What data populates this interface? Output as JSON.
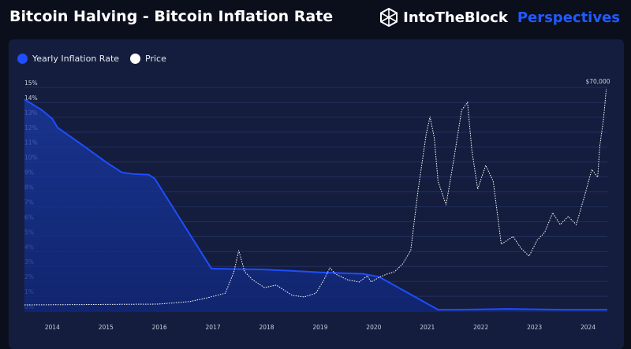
{
  "title": "Bitcoin Halving - Bitcoin Inflation Rate",
  "brand": {
    "name": "IntoTheBlock",
    "suffix": "Perspectives",
    "logo_icon": "hexagon-cube-icon"
  },
  "colors": {
    "inflation": "#1f4dff",
    "price": "#ffffff",
    "background": "#0b0f1c",
    "card": "#141d3d",
    "accent": "#1f5bff"
  },
  "chart_data": {
    "type": "line",
    "title": "",
    "legend": {
      "placement": "top-left",
      "entries": [
        "Yearly Inflation Rate",
        "Price"
      ]
    },
    "grid": true,
    "x_ticks": [
      "2014",
      "2015",
      "2016",
      "2017",
      "2018",
      "2019",
      "2020",
      "2021",
      "2022",
      "2023",
      "2024"
    ],
    "xlim": [
      2013.48,
      2024.36
    ],
    "y_ticks": [
      "0%",
      "1%",
      "2%",
      "3%",
      "4%",
      "5%",
      "6%",
      "7%",
      "8%",
      "9%",
      "10%",
      "11%",
      "12%",
      "13%",
      "14%",
      "15%"
    ],
    "ylim": [
      0,
      15
    ],
    "price_axis_label": "$70,000",
    "price_lim": [
      0,
      70000
    ],
    "series": [
      {
        "name": "Yearly Inflation Rate",
        "style": "area-line",
        "x": [
          2013.48,
          2013.8,
          2014.0,
          2014.1,
          2014.5,
          2015.0,
          2015.3,
          2015.5,
          2015.8,
          2015.91,
          2016.97,
          2017.9,
          2018.5,
          2019.0,
          2019.8,
          2020.1,
          2021.2,
          2021.6,
          2022.5,
          2023.5,
          2024.36
        ],
        "y": [
          14.2,
          13.5,
          12.9,
          12.3,
          11.3,
          10.0,
          9.3,
          9.2,
          9.15,
          8.9,
          2.85,
          2.8,
          2.7,
          2.6,
          2.5,
          2.3,
          0.1,
          0.1,
          0.15,
          0.1,
          0.1
        ]
      },
      {
        "name": "Price",
        "style": "dotted-line",
        "x": [
          2013.48,
          2015.97,
          2016.56,
          2016.89,
          2017.23,
          2017.39,
          2017.48,
          2017.59,
          2017.74,
          2017.96,
          2018.18,
          2018.48,
          2018.7,
          2018.92,
          2019.07,
          2019.18,
          2019.29,
          2019.51,
          2019.73,
          2019.88,
          2019.95,
          2020.1,
          2020.24,
          2020.39,
          2020.54,
          2020.69,
          2020.83,
          2020.98,
          2021.05,
          2021.13,
          2021.2,
          2021.35,
          2021.5,
          2021.64,
          2021.75,
          2021.83,
          2021.94,
          2022.09,
          2022.23,
          2022.38,
          2022.6,
          2022.75,
          2022.9,
          2023.05,
          2023.19,
          2023.34,
          2023.48,
          2023.63,
          2023.78,
          2023.93,
          2024.07,
          2024.18,
          2024.22,
          2024.29,
          2024.34
        ],
        "y": [
          250,
          500,
          1300,
          2500,
          4000,
          10900,
          17700,
          10900,
          8300,
          5800,
          6600,
          3300,
          2800,
          4000,
          8300,
          12100,
          10100,
          8300,
          7600,
          9600,
          7600,
          9100,
          10100,
          10900,
          13400,
          17700,
          37400,
          55100,
          60600,
          53800,
          39900,
          32300,
          47500,
          62700,
          65200,
          50000,
          37400,
          45000,
          39900,
          19700,
          22200,
          18400,
          15900,
          21000,
          23500,
          29800,
          26000,
          28600,
          26000,
          34900,
          43700,
          41200,
          51300,
          60100,
          69500
        ]
      }
    ]
  }
}
